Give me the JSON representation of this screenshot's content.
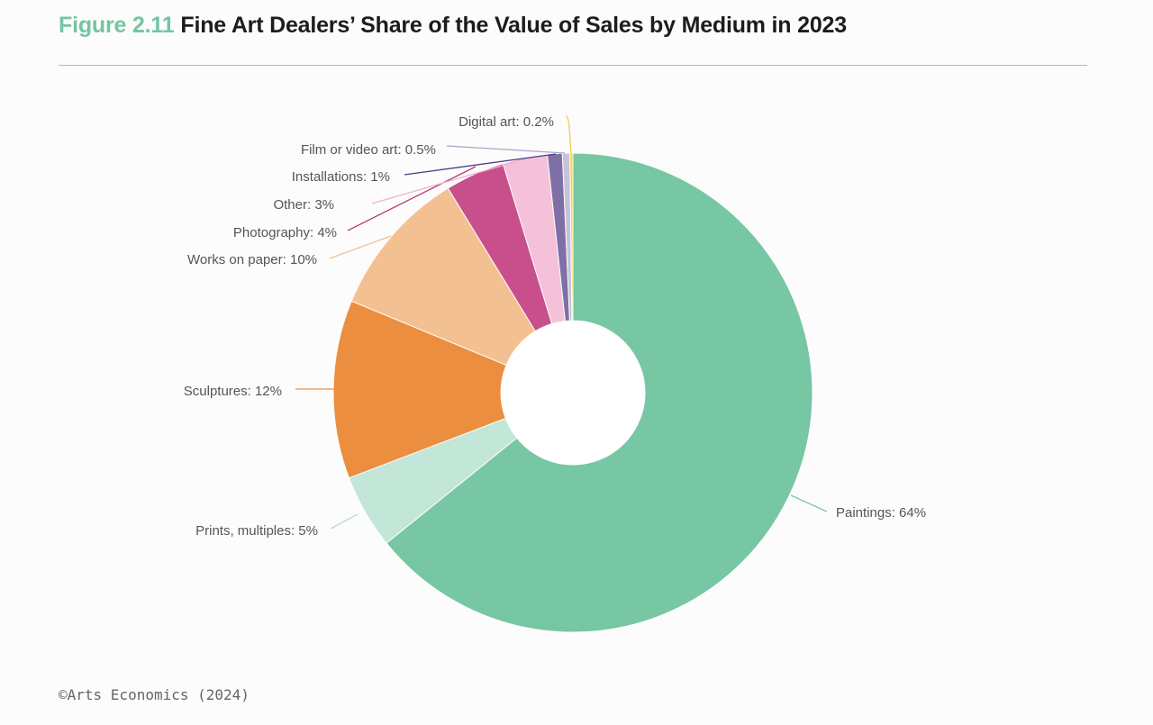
{
  "header": {
    "figure_number": "Figure 2.11",
    "title": "Fine Art Dealers’ Share of the Value of Sales by Medium in 2023"
  },
  "footer": {
    "credit": "©Arts Economics (2024)"
  },
  "chart_data": {
    "type": "pie",
    "variant": "donut",
    "title": "Fine Art Dealers’ Share of the Value of Sales by Medium in 2023",
    "units": "%",
    "start": "12 o'clock, clockwise",
    "slices": [
      {
        "label": "Paintings: 64%",
        "category": "Paintings",
        "value": 64,
        "color": "#77c6a4",
        "line_color": "#77c6a4"
      },
      {
        "label": "Prints, multiples: 5%",
        "category": "Prints, multiples",
        "value": 5,
        "color": "#c2e6d8",
        "line_color": "#b3dfcd"
      },
      {
        "label": "Sculptures: 12%",
        "category": "Sculptures",
        "value": 12,
        "color": "#eb8e3f",
        "line_color": "#eb8e3f"
      },
      {
        "label": "Works on paper: 10%",
        "category": "Works on paper",
        "value": 10,
        "color": "#f3c191",
        "line_color": "#f3c191"
      },
      {
        "label": "Photography: 4%",
        "category": "Photography",
        "value": 4,
        "color": "#c84f8c",
        "line_color": "#b63d78"
      },
      {
        "label": "Other: 3%",
        "category": "Other",
        "value": 3,
        "color": "#f4c1d9",
        "line_color": "#f2b2cf"
      },
      {
        "label": "Installations: 1%",
        "category": "Installations",
        "value": 1,
        "color": "#7e6fa7",
        "line_color": "#4b3d86"
      },
      {
        "label": "Film or video art: 0.5%",
        "category": "Film or video art",
        "value": 0.5,
        "color": "#c6c3d8",
        "line_color": "#aaa6c8"
      },
      {
        "label": "Digital art: 0.2%",
        "category": "Digital art",
        "value": 0.2,
        "color": "#f7d648",
        "line_color": "#f1d244"
      }
    ]
  }
}
